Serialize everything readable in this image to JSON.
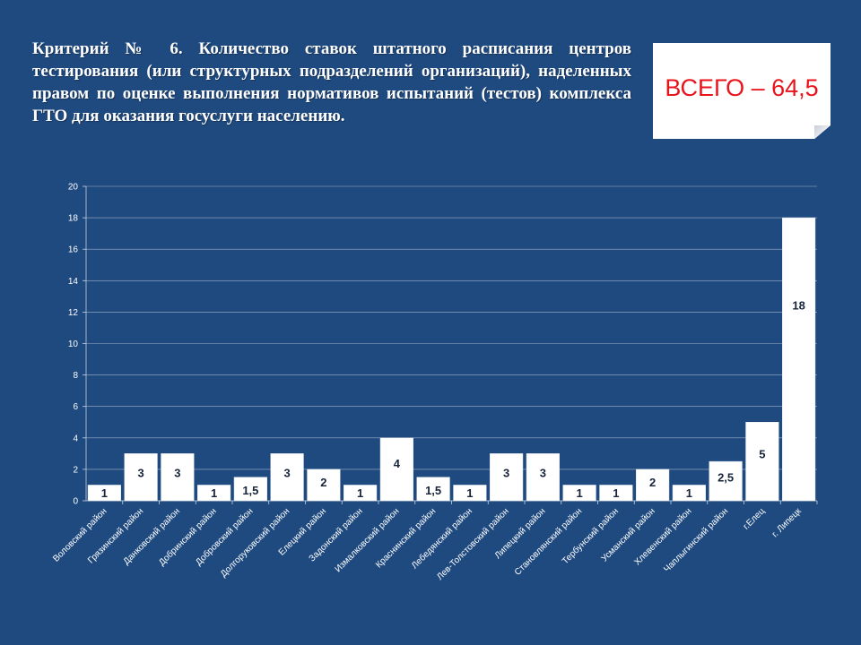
{
  "slide": {
    "title": "Критерий № 6. Количество ставок штатного расписания центров тестирования (или структурных подразделений организаций), наделенных правом по оценке выполнения нормативов испытаний (тестов) комплекса ГТО для оказания госуслуги населению.",
    "total": "ВСЕГО – 64,5"
  },
  "colors": {
    "background": "#1f4a80",
    "bar": "#ffffff",
    "total_text": "#e8131b"
  },
  "chart_data": {
    "type": "bar",
    "categories": [
      "Воловский район",
      "Грязинский район",
      "Данковский район",
      "Добринский район",
      "Добровский район",
      "Долгоруковский район",
      "Елецкий район",
      "Задонский район",
      "Измалковский район",
      "Краснинский район",
      "Лебедянский район",
      "Лев-Толстовский район",
      "Липецкий район",
      "Становлянский район",
      "Тербунский район",
      "Усманский район",
      "Хлевенский район",
      "Чаплыгинский район",
      "г.Елец",
      "г. Липецк"
    ],
    "values": [
      1,
      3,
      3,
      1,
      1.5,
      3,
      2,
      1,
      4,
      1.5,
      1,
      3,
      3,
      1,
      1,
      2,
      1,
      2.5,
      5,
      18
    ],
    "value_labels": [
      "1",
      "3",
      "3",
      "1",
      "1,5",
      "3",
      "2",
      "1",
      "4",
      "1,5",
      "1",
      "3",
      "3",
      "1",
      "1",
      "2",
      "1",
      "2,5",
      "5",
      "18"
    ],
    "yticks": [
      "0",
      "2",
      "4",
      "6",
      "8",
      "10",
      "12",
      "14",
      "16",
      "18",
      "20"
    ],
    "ylim": [
      0,
      20
    ],
    "grid": true,
    "legend": "none"
  }
}
